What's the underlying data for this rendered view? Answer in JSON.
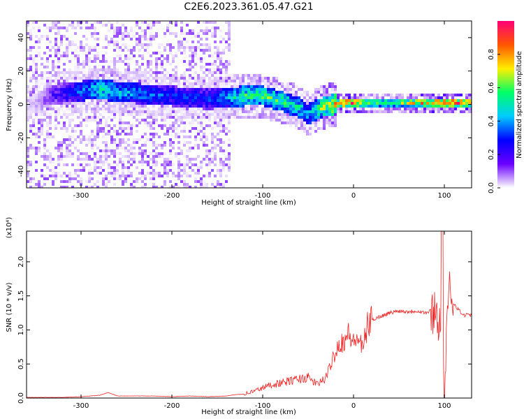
{
  "title": "C2E6.2023.361.05.47.G21",
  "colors": {
    "frame": "#000000",
    "snr_line": "#ee2222",
    "colormap": [
      "#ffffff",
      "#6a00ff",
      "#0000ff",
      "#00ccff",
      "#00ff66",
      "#ffee00",
      "#ff5500",
      "#ff0077"
    ]
  },
  "chart_data": [
    {
      "type": "heatmap",
      "title": "",
      "xlabel": "Height of straight line (km)",
      "ylabel": "Frequency (Hz)",
      "xlim": [
        -360,
        130
      ],
      "ylim": [
        -50,
        50
      ],
      "xticks": [
        -300,
        -200,
        -100,
        0,
        100
      ],
      "yticks": [
        -40,
        -20,
        0,
        20,
        40
      ],
      "xtick_labels": [
        "-300",
        "-200",
        "-100",
        "0",
        "100"
      ],
      "ytick_labels": [
        "-40",
        "-20",
        "0",
        "20",
        "40"
      ],
      "colorbar": {
        "label": "Normalized spectral amplitude",
        "range": [
          0.0,
          1.0
        ],
        "ticks": [
          0.0,
          0.2,
          0.4,
          0.6,
          0.8
        ],
        "tick_labels": [
          "0.0",
          "0.2",
          "0.4",
          "0.6",
          "0.8"
        ]
      },
      "ridge": {
        "x": [
          -360,
          -330,
          -300,
          -280,
          -250,
          -200,
          -160,
          -140,
          -120,
          -100,
          -80,
          -60,
          -50,
          -40,
          -30,
          -20,
          -10,
          0,
          20,
          50,
          80,
          100,
          130
        ],
        "freq": [
          -2,
          6,
          8,
          9,
          7,
          5,
          3,
          4,
          5,
          5,
          2,
          -2,
          -6,
          -3,
          -1,
          0,
          1,
          1,
          1,
          1,
          1,
          1,
          1
        ],
        "amplitude": [
          0.05,
          0.2,
          0.35,
          0.5,
          0.4,
          0.3,
          0.3,
          0.4,
          0.55,
          0.55,
          0.55,
          0.5,
          0.4,
          0.55,
          0.65,
          0.8,
          0.9,
          0.85,
          0.6,
          0.6,
          0.8,
          0.85,
          0.85
        ]
      }
    },
    {
      "type": "line",
      "title": "",
      "xlabel": "Height of straight line (km)",
      "ylabel": "SNR (10 * v/v)",
      "y_multiplier_label": "(x10⁴)",
      "xlim": [
        -360,
        130
      ],
      "ylim": [
        0,
        2.45
      ],
      "xticks": [
        -300,
        -200,
        -100,
        0,
        100
      ],
      "yticks": [
        0.0,
        0.5,
        1.0,
        1.5,
        2.0
      ],
      "xtick_labels": [
        "-300",
        "-200",
        "-100",
        "0",
        "100"
      ],
      "ytick_labels": [
        "0.0",
        "0.5",
        "1.0",
        "1.5",
        "2.0"
      ],
      "series": [
        {
          "x": [
            -360,
            -340,
            -320,
            -300,
            -280,
            -270,
            -260,
            -240,
            -220,
            -200,
            -180,
            -160,
            -140,
            -130,
            -120,
            -110,
            -100,
            -90,
            -80,
            -70,
            -60,
            -50,
            -40,
            -35,
            -30,
            -25,
            -20,
            -15,
            -10,
            -5,
            0,
            5,
            10,
            15,
            20,
            30,
            40,
            50,
            60,
            70,
            80,
            85,
            90,
            95,
            100,
            105,
            110,
            120,
            130
          ],
          "y": [
            0.01,
            0.01,
            0.01,
            0.02,
            0.04,
            0.08,
            0.03,
            0.03,
            0.03,
            0.02,
            0.03,
            0.02,
            0.03,
            0.05,
            0.06,
            0.1,
            0.15,
            0.2,
            0.22,
            0.25,
            0.28,
            0.3,
            0.2,
            0.25,
            0.3,
            0.5,
            0.7,
            0.8,
            0.85,
            0.95,
            0.8,
            0.9,
            0.7,
            1.05,
            1.15,
            1.2,
            1.25,
            1.28,
            1.27,
            1.28,
            1.25,
            1.28,
            1.3,
            1.1,
            0.05,
            1.6,
            1.4,
            1.22,
            1.22
          ]
        }
      ]
    }
  ]
}
